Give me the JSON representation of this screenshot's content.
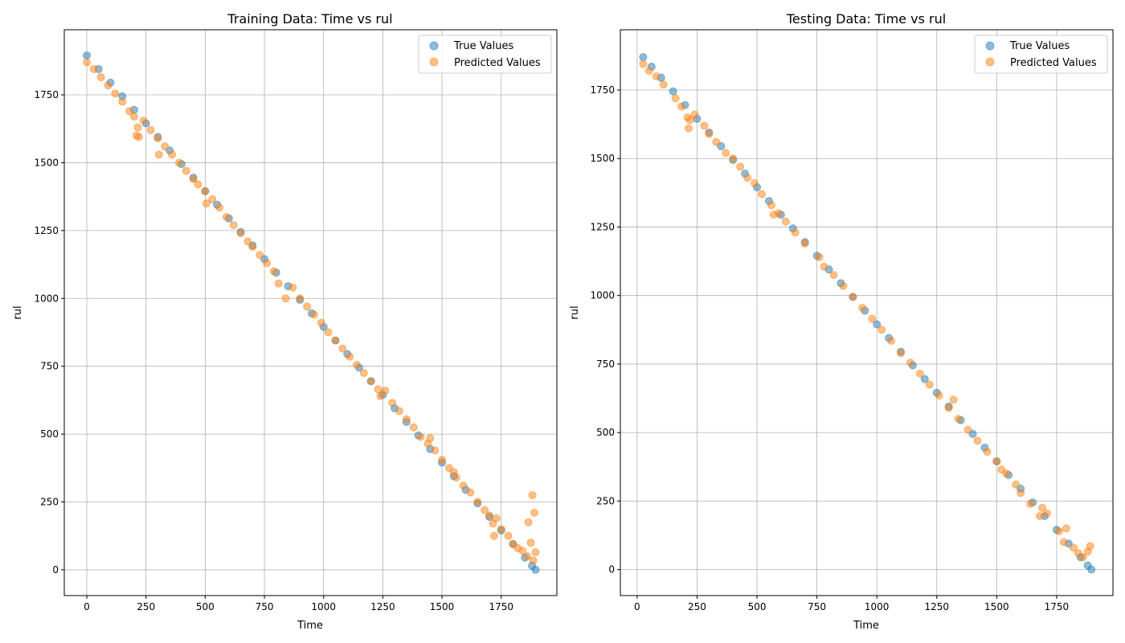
{
  "chart_data": [
    {
      "type": "scatter",
      "title": "Training Data: Time vs rul",
      "xlabel": "Time",
      "ylabel": "rul",
      "xlim": [
        -95,
        1985
      ],
      "ylim": [
        -95,
        1990
      ],
      "xticks": [
        0,
        250,
        500,
        750,
        1000,
        1250,
        1500,
        1750
      ],
      "yticks": [
        0,
        250,
        500,
        750,
        1000,
        1250,
        1500,
        1750
      ],
      "grid": true,
      "legend_position": "top-right",
      "series": [
        {
          "name": "True Values",
          "color": "#1f77b4",
          "x": [
            0,
            50,
            100,
            150,
            200,
            250,
            300,
            350,
            400,
            450,
            500,
            550,
            600,
            650,
            700,
            750,
            800,
            850,
            900,
            950,
            1000,
            1050,
            1100,
            1150,
            1200,
            1250,
            1300,
            1350,
            1400,
            1450,
            1500,
            1550,
            1600,
            1650,
            1700,
            1750,
            1800,
            1850,
            1880,
            1895
          ],
          "y": [
            1895,
            1845,
            1795,
            1745,
            1695,
            1645,
            1595,
            1545,
            1495,
            1445,
            1395,
            1345,
            1295,
            1245,
            1195,
            1145,
            1095,
            1045,
            995,
            945,
            895,
            845,
            795,
            745,
            695,
            645,
            595,
            545,
            495,
            445,
            395,
            345,
            295,
            245,
            195,
            145,
            95,
            45,
            15,
            0
          ]
        },
        {
          "name": "Predicted Values",
          "color": "#ff7f0e",
          "x": [
            0,
            30,
            60,
            90,
            120,
            150,
            180,
            200,
            210,
            215,
            220,
            240,
            270,
            300,
            305,
            330,
            360,
            390,
            420,
            450,
            470,
            500,
            505,
            530,
            560,
            590,
            620,
            650,
            680,
            700,
            730,
            760,
            790,
            810,
            840,
            870,
            900,
            930,
            960,
            990,
            1020,
            1050,
            1080,
            1110,
            1140,
            1170,
            1200,
            1230,
            1240,
            1260,
            1290,
            1320,
            1350,
            1380,
            1410,
            1440,
            1450,
            1470,
            1500,
            1530,
            1550,
            1560,
            1590,
            1620,
            1650,
            1680,
            1700,
            1715,
            1720,
            1730,
            1750,
            1780,
            1800,
            1820,
            1840,
            1860,
            1865,
            1875,
            1882,
            1885,
            1890,
            1895
          ],
          "y": [
            1870,
            1845,
            1815,
            1785,
            1755,
            1725,
            1690,
            1670,
            1600,
            1630,
            1595,
            1655,
            1620,
            1590,
            1530,
            1560,
            1530,
            1500,
            1470,
            1440,
            1420,
            1395,
            1350,
            1365,
            1335,
            1300,
            1270,
            1240,
            1210,
            1190,
            1160,
            1130,
            1100,
            1055,
            1000,
            1040,
            1000,
            970,
            940,
            910,
            875,
            845,
            815,
            785,
            755,
            725,
            695,
            665,
            640,
            660,
            615,
            585,
            555,
            525,
            490,
            465,
            485,
            440,
            405,
            375,
            360,
            340,
            310,
            285,
            250,
            220,
            200,
            170,
            125,
            190,
            150,
            125,
            95,
            80,
            70,
            50,
            175,
            100,
            275,
            35,
            210,
            65
          ]
        }
      ]
    },
    {
      "type": "scatter",
      "title": "Testing Data: Time vs rul",
      "xlabel": "Time",
      "ylabel": "rul",
      "xlim": [
        -70,
        1985
      ],
      "ylim": [
        -95,
        1970
      ],
      "xticks": [
        0,
        250,
        500,
        750,
        1000,
        1250,
        1500,
        1750
      ],
      "yticks": [
        0,
        250,
        500,
        750,
        1000,
        1250,
        1500,
        1750
      ],
      "grid": true,
      "legend_position": "top-right",
      "series": [
        {
          "name": "True Values",
          "color": "#1f77b4",
          "x": [
            25,
            60,
            100,
            150,
            200,
            250,
            300,
            350,
            400,
            450,
            500,
            550,
            600,
            650,
            700,
            750,
            800,
            850,
            900,
            950,
            1000,
            1050,
            1100,
            1150,
            1200,
            1250,
            1300,
            1350,
            1400,
            1450,
            1500,
            1550,
            1600,
            1650,
            1700,
            1750,
            1800,
            1850,
            1880,
            1895
          ],
          "y": [
            1870,
            1835,
            1795,
            1745,
            1695,
            1645,
            1595,
            1545,
            1495,
            1445,
            1395,
            1345,
            1295,
            1245,
            1195,
            1145,
            1095,
            1045,
            995,
            945,
            895,
            845,
            795,
            745,
            695,
            645,
            595,
            545,
            495,
            445,
            395,
            345,
            295,
            245,
            195,
            145,
            95,
            45,
            15,
            0
          ]
        },
        {
          "name": "Predicted Values",
          "color": "#ff7f0e",
          "x": [
            25,
            50,
            80,
            110,
            160,
            185,
            210,
            215,
            220,
            240,
            280,
            300,
            330,
            370,
            400,
            430,
            460,
            490,
            520,
            560,
            570,
            590,
            620,
            660,
            700,
            760,
            780,
            820,
            860,
            900,
            940,
            980,
            1020,
            1060,
            1100,
            1140,
            1180,
            1220,
            1260,
            1300,
            1320,
            1340,
            1380,
            1420,
            1460,
            1500,
            1520,
            1540,
            1580,
            1600,
            1640,
            1680,
            1690,
            1710,
            1760,
            1780,
            1790,
            1820,
            1840,
            1860,
            1880,
            1890
          ],
          "y": [
            1845,
            1820,
            1800,
            1770,
            1720,
            1690,
            1650,
            1610,
            1640,
            1660,
            1620,
            1590,
            1560,
            1520,
            1500,
            1470,
            1430,
            1410,
            1370,
            1330,
            1295,
            1300,
            1270,
            1230,
            1190,
            1140,
            1105,
            1075,
            1035,
            995,
            955,
            915,
            875,
            835,
            790,
            755,
            715,
            675,
            635,
            590,
            620,
            550,
            510,
            470,
            430,
            395,
            365,
            350,
            310,
            280,
            240,
            195,
            225,
            205,
            140,
            100,
            150,
            80,
            60,
            45,
            65,
            85
          ]
        }
      ]
    }
  ]
}
